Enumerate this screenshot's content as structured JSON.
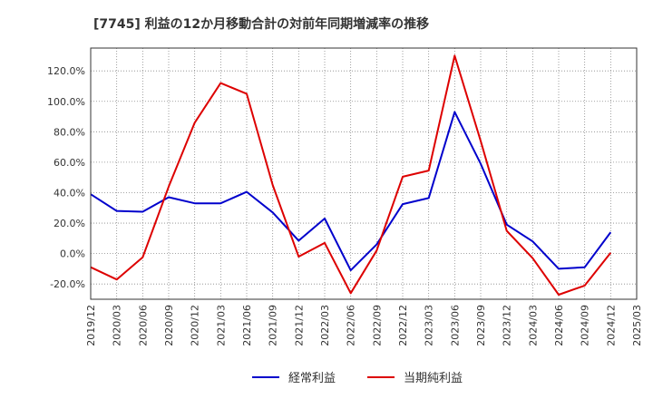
{
  "chart_data": {
    "type": "line",
    "title": "[7745]  利益の12か月移動合計の対前年同期増減率の推移",
    "categories": [
      "2019/12",
      "2020/03",
      "2020/06",
      "2020/09",
      "2020/12",
      "2021/03",
      "2021/06",
      "2021/09",
      "2021/12",
      "2022/03",
      "2022/06",
      "2022/09",
      "2022/12",
      "2023/03",
      "2023/06",
      "2023/09",
      "2023/12",
      "2024/03",
      "2024/06",
      "2024/09",
      "2024/12",
      "2025/03"
    ],
    "series": [
      {
        "name": "経常利益",
        "color": "#0000cc",
        "values": [
          39,
          28,
          27.5,
          37,
          33,
          33,
          40.5,
          27,
          8.5,
          23,
          -11,
          6,
          32.5,
          36.5,
          93,
          59,
          19,
          8,
          -10,
          -9,
          14,
          null
        ]
      },
      {
        "name": "当期純利益",
        "color": "#dd0000",
        "values": [
          -9,
          -17,
          -2.5,
          44,
          86,
          112,
          105,
          45,
          -2,
          7,
          -26,
          2,
          50.5,
          54.5,
          130,
          74,
          15,
          -3,
          -27,
          -21,
          0.5,
          null
        ]
      }
    ],
    "ylim": [
      -30,
      135
    ],
    "yticks": [
      -20,
      0,
      20,
      40,
      60,
      80,
      100,
      120
    ],
    "ytick_labels": [
      "-20.0%",
      "0.0%",
      "20.0%",
      "40.0%",
      "60.0%",
      "80.0%",
      "100.0%",
      "120.0%"
    ],
    "xlabel": "",
    "ylabel": "",
    "grid": true,
    "legend_position": "bottom"
  }
}
